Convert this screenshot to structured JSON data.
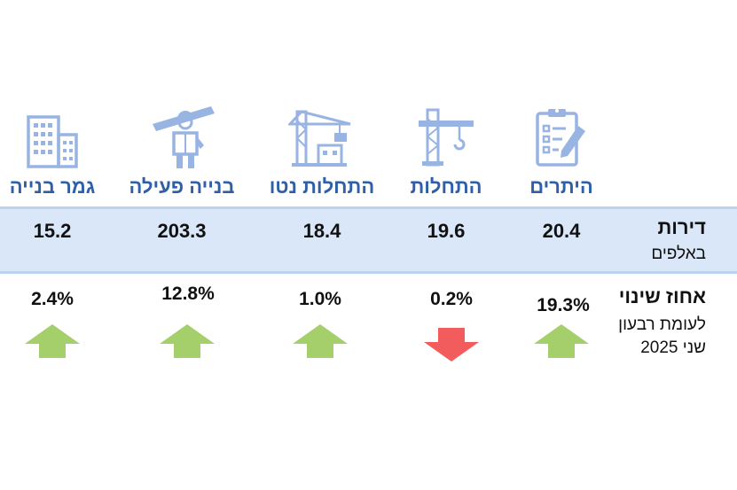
{
  "columns": [
    {
      "title": "היתרים",
      "value": "20.4",
      "change": "19.3%",
      "direction": "up",
      "icon": "clipboard-icon"
    },
    {
      "title": "התחלות",
      "value": "19.6",
      "change": "0.2%",
      "direction": "down",
      "icon": "crane-icon"
    },
    {
      "title": "התחלות נטו",
      "value": "18.4",
      "change": "1.0%",
      "direction": "up",
      "icon": "crane-building-icon"
    },
    {
      "title": "בנייה פעילה",
      "value": "203.3",
      "change": "12.8%",
      "direction": "up",
      "icon": "construction-worker-icon"
    },
    {
      "title": "גמר בנייה",
      "value": "15.2",
      "change": "2.4%",
      "direction": "up",
      "icon": "office-building-icon"
    }
  ],
  "rows": {
    "units_label": "דירות",
    "units_sub": "באלפים",
    "change_label": "אחוז שינוי",
    "change_sub_1": "לעומת רבעון",
    "change_sub_2": "שני 2025"
  },
  "colors": {
    "icon": "#98b4e2",
    "title": "#2e5fa8",
    "band": "#dae7f8",
    "up": "#a5cf6a",
    "down": "#f25c5c"
  }
}
